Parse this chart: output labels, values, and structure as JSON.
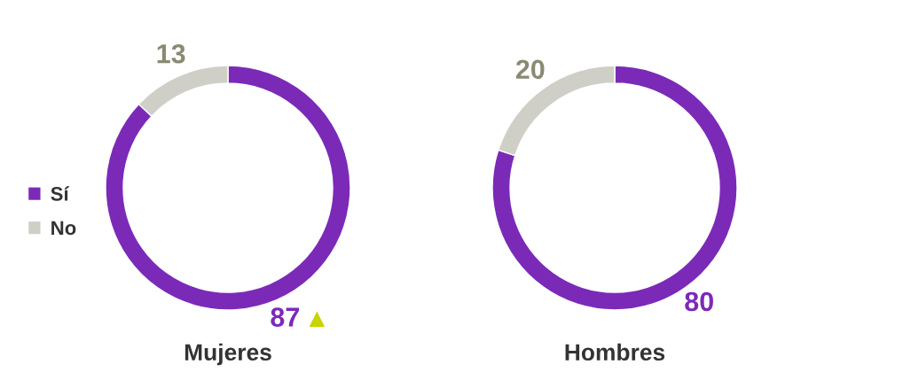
{
  "chart_data": [
    {
      "type": "donut",
      "title": "Mujeres",
      "categories": [
        "Sí",
        "No"
      ],
      "values": [
        87,
        13
      ],
      "colors": [
        "#7b2ab8",
        "#cfcfc7"
      ],
      "data_labels": true,
      "legend": "left"
    },
    {
      "type": "donut",
      "title": "Hombres",
      "categories": [
        null,
        null
      ],
      "values": [
        80,
        20
      ],
      "colors": [
        "#7b2ab8",
        "#cfcfc7"
      ],
      "data_labels": true,
      "legend": false
    }
  ]
}
